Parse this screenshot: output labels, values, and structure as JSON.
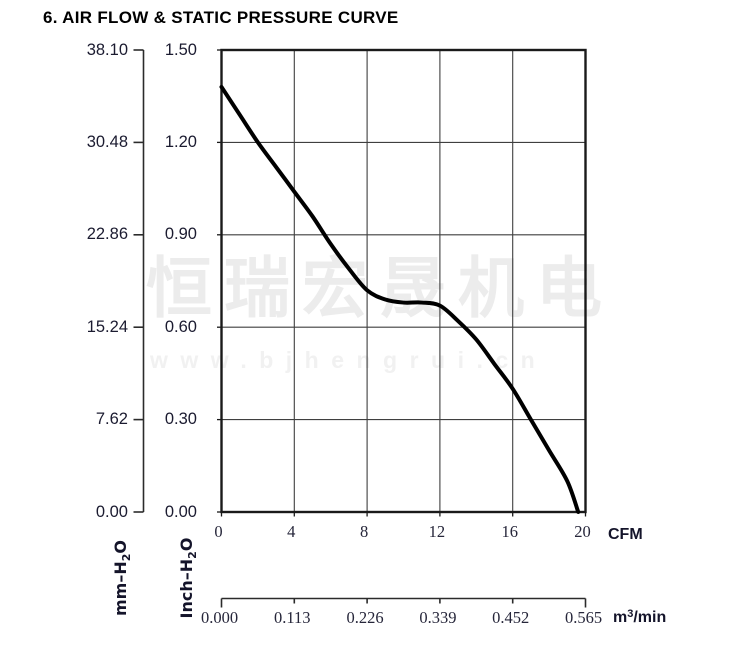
{
  "title": "6. AIR FLOW & STATIC PRESSURE CURVE",
  "watermark": {
    "line1": "恒瑞宏晟机电",
    "line2": "www.bjhengrui.cn"
  },
  "axes": {
    "mm": {
      "label": {
        "prefix": "mm–H",
        "sub": "2",
        "suffix": "O"
      },
      "ticks": [
        "38.10",
        "30.48",
        "22.86",
        "15.24",
        "7.62",
        "0.00"
      ]
    },
    "inch": {
      "label": {
        "prefix": "Inch–H",
        "sub": "2",
        "suffix": "O"
      },
      "ticks": [
        "1.50",
        "1.20",
        "0.90",
        "0.60",
        "0.30",
        "0.00"
      ]
    },
    "cfm": {
      "unit": "CFM",
      "ticks": [
        "0",
        "4",
        "8",
        "12",
        "16",
        "20"
      ]
    },
    "m3min": {
      "unit": {
        "prefix": "m",
        "sup": "3",
        "suffix": "/min"
      },
      "ticks": [
        "0.000",
        "0.113",
        "0.226",
        "0.339",
        "0.452",
        "0.565"
      ]
    }
  },
  "colors": {
    "curve": "#000000",
    "grid": "#3f3f3f",
    "frame": "#1a1a1a",
    "axis": "#2b2b2b",
    "tick_text": "#1b1b30",
    "watermark": "#ececec"
  },
  "chart_data": {
    "type": "line",
    "title": "6. AIR FLOW & STATIC PRESSURE CURVE",
    "grid": true,
    "x_axis": {
      "unit": "CFM",
      "min": 0,
      "max": 20,
      "ticks": [
        0,
        4,
        8,
        12,
        16,
        20
      ]
    },
    "x_axis_secondary": {
      "unit": "m³/min",
      "ticks": [
        0.0,
        0.113,
        0.226,
        0.339,
        0.452,
        0.565
      ]
    },
    "y_axis": {
      "unit": "Inch–H₂O",
      "min": 0,
      "max": 1.5,
      "ticks": [
        1.5,
        1.2,
        0.9,
        0.6,
        0.3,
        0.0
      ]
    },
    "y_axis_secondary": {
      "unit": "mm–H₂O",
      "ticks": [
        38.1,
        30.48,
        22.86,
        15.24,
        7.62,
        0.0
      ]
    },
    "series": [
      {
        "name": "static-pressure-curve",
        "x_cfm": [
          0,
          1,
          2,
          3,
          4,
          5,
          6,
          7,
          8,
          9,
          10,
          11,
          12,
          13,
          14,
          15,
          16,
          17,
          18,
          19,
          19.6
        ],
        "y_inch_h2o": [
          1.38,
          1.29,
          1.2,
          1.12,
          1.04,
          0.96,
          0.87,
          0.79,
          0.72,
          0.69,
          0.68,
          0.68,
          0.67,
          0.62,
          0.56,
          0.48,
          0.4,
          0.3,
          0.2,
          0.1,
          0.0
        ]
      }
    ]
  }
}
